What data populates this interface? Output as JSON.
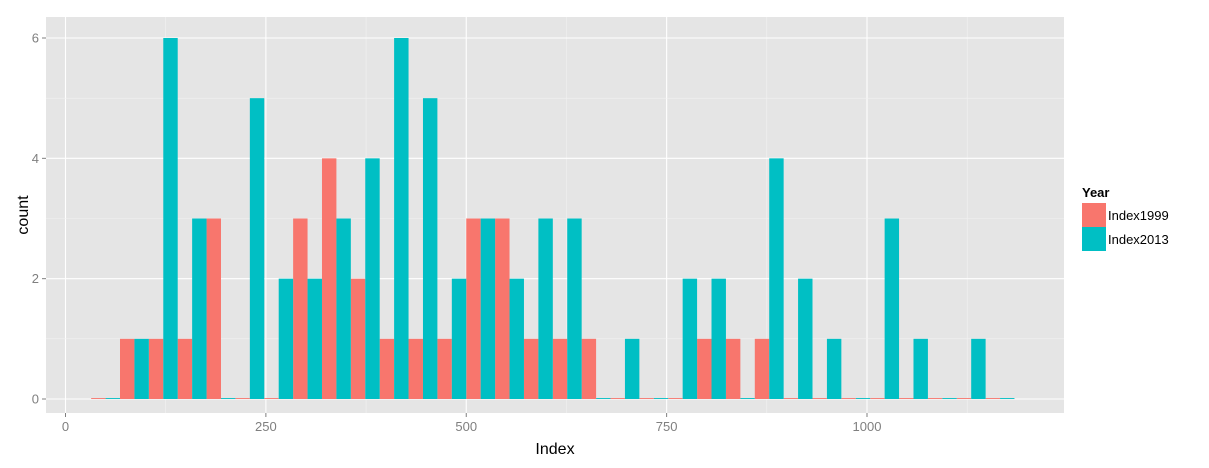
{
  "chart_data": {
    "type": "bar",
    "title": "",
    "xlabel": "Index",
    "ylabel": "count",
    "xlim": [
      0,
      1250
    ],
    "ylim": [
      0,
      6.3
    ],
    "x_ticks": [
      0,
      250,
      500,
      750,
      1000
    ],
    "y_ticks": [
      0,
      2,
      4,
      6
    ],
    "grid": true,
    "legend": {
      "title": "Year",
      "placement": "right"
    },
    "bin_centers": [
      50,
      86,
      122,
      158,
      194,
      230,
      266,
      302,
      338,
      374,
      410,
      446,
      482,
      518,
      554,
      590,
      626,
      662,
      698,
      734,
      770,
      806,
      842,
      878,
      914,
      950,
      986,
      1022,
      1058,
      1094,
      1130,
      1166
    ],
    "series": [
      {
        "name": "Index1999",
        "color": "#F8766D",
        "values": [
          0,
          1,
          1,
          1,
          3,
          0,
          0,
          3,
          4,
          2,
          1,
          1,
          1,
          3,
          3,
          1,
          1,
          1,
          0,
          0,
          0,
          1,
          1,
          1,
          0,
          0,
          0,
          0,
          0,
          0,
          0,
          0
        ]
      },
      {
        "name": "Index2013",
        "color": "#00BFC4",
        "values": [
          0,
          1,
          6,
          3,
          0,
          5,
          2,
          2,
          3,
          4,
          6,
          5,
          2,
          3,
          2,
          3,
          3,
          0,
          1,
          0,
          2,
          2,
          0,
          4,
          2,
          1,
          0,
          3,
          1,
          0,
          1,
          0
        ]
      }
    ]
  }
}
